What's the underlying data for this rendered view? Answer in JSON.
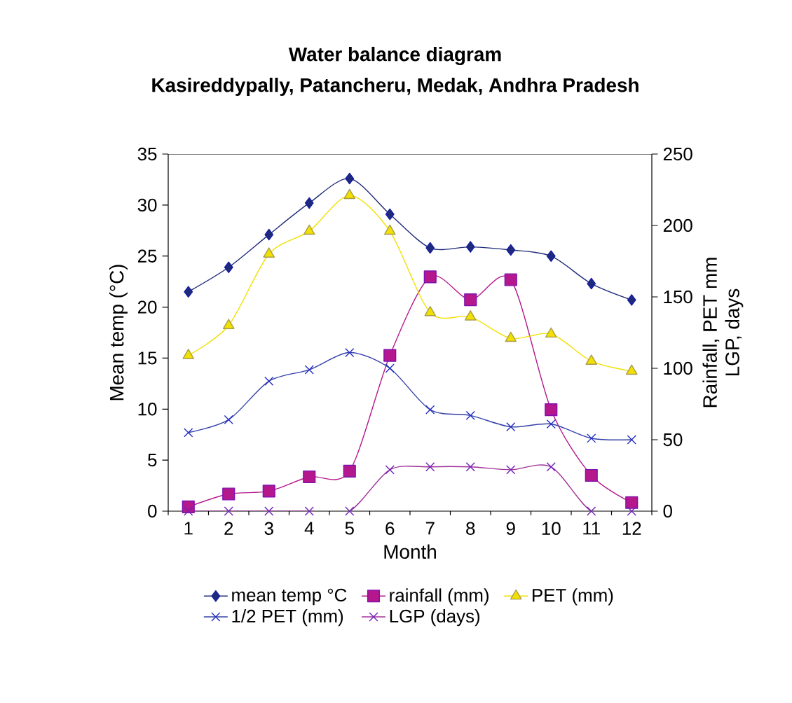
{
  "chart_data": {
    "type": "line",
    "title": "Water balance diagram",
    "subtitle": "Kasireddypally, Patancheru, Medak, Andhra Pradesh",
    "xlabel": "Month",
    "ylabel": "Mean temp (°C)",
    "y2label": "Rainfall, PET mm\nLGP, days",
    "categories": [
      "1",
      "2",
      "3",
      "4",
      "5",
      "6",
      "7",
      "8",
      "9",
      "10",
      "11",
      "12"
    ],
    "ylim": [
      0,
      35
    ],
    "yticks": [
      0,
      5,
      10,
      15,
      20,
      25,
      30,
      35
    ],
    "y2lim": [
      0,
      250
    ],
    "y2ticks": [
      0,
      50,
      100,
      150,
      200,
      250
    ],
    "legend": "bottom",
    "grid": false,
    "series": [
      {
        "name": "mean temp °C",
        "color": "#1f2a7a",
        "marker": "diamond",
        "values": [
          21.5,
          23.9,
          27.1,
          30.2,
          32.6,
          29.1,
          25.8,
          25.9,
          25.6,
          25.0,
          22.3,
          20.7
        ]
      },
      {
        "name": "rainfall (mm)",
        "color": "#b5178c",
        "marker": "square",
        "axis": "y2",
        "values": [
          3,
          12,
          14,
          24,
          28,
          109,
          164,
          148,
          162,
          71,
          25,
          6
        ]
      },
      {
        "name": "PET (mm)",
        "color": "#f2e000",
        "marker": "triangle",
        "axis": "y2",
        "values": [
          109,
          130,
          180,
          196,
          221,
          196,
          139,
          136,
          121,
          124,
          105,
          98
        ]
      },
      {
        "name": "1/2 PET (mm)",
        "color": "#3340a8",
        "marker": "cross",
        "axis": "y2",
        "values": [
          55,
          64,
          91,
          99,
          111,
          100,
          71,
          67,
          59,
          61,
          51,
          50
        ]
      },
      {
        "name": "LGP (days)",
        "color": "#a0309a",
        "marker": "cross",
        "axis": "y2",
        "values": [
          0,
          0,
          0,
          0,
          0,
          29,
          31,
          31,
          29,
          31,
          0,
          0
        ]
      }
    ]
  }
}
